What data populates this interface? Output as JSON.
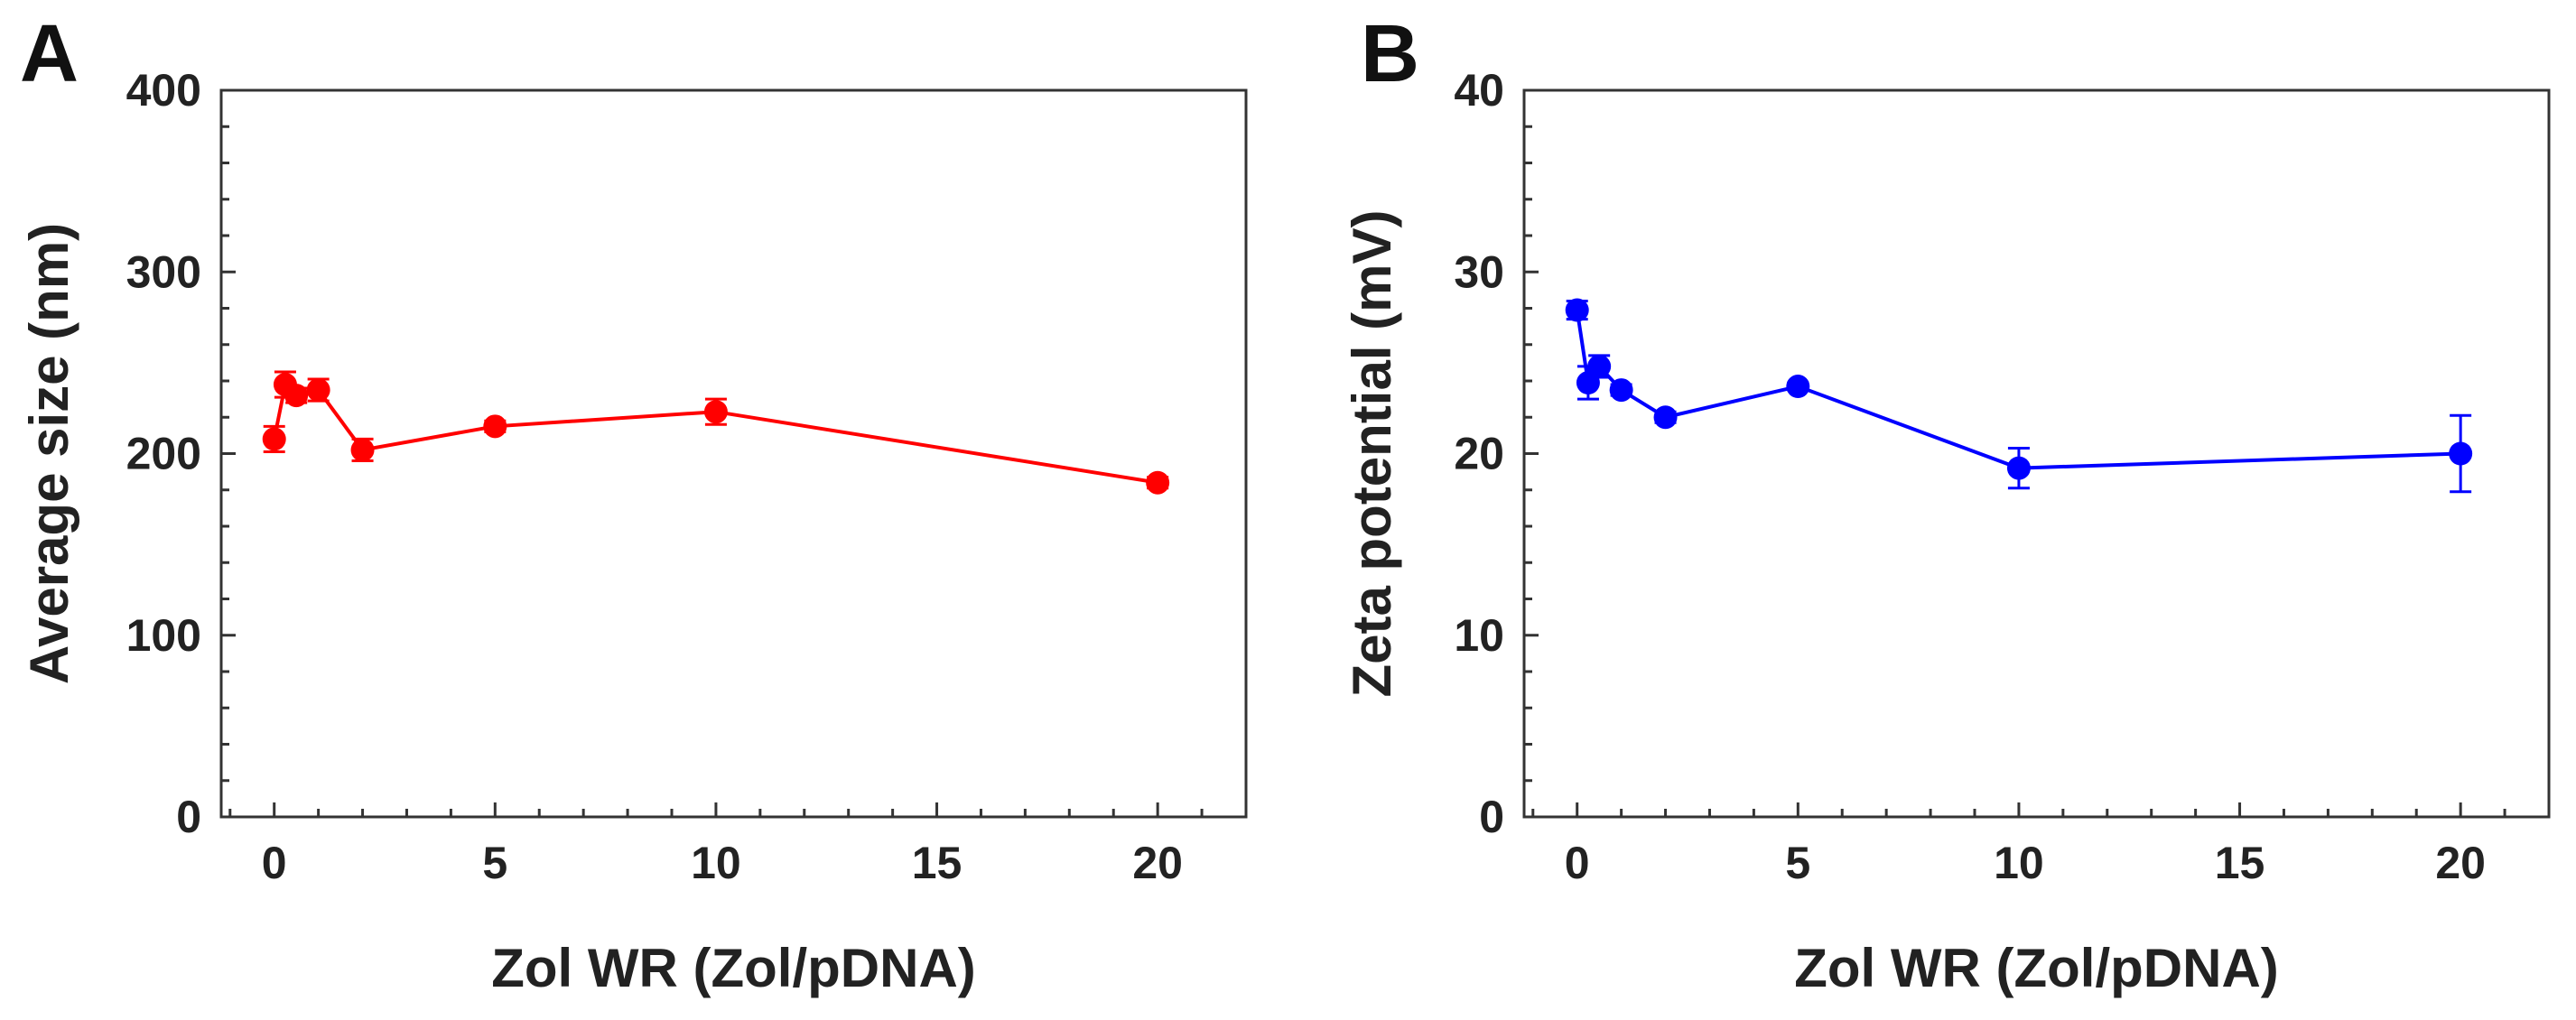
{
  "chart_data": [
    {
      "panel_label": "A",
      "type": "line",
      "xlabel": "Zol WR (Zol/pDNA)",
      "ylabel": "Average size (nm)",
      "xlim": [
        -1.2,
        22
      ],
      "ylim": [
        0,
        400
      ],
      "xticks": [
        "0",
        "5",
        "10",
        "15",
        "20"
      ],
      "xtick_values": [
        0,
        5,
        10,
        15,
        20
      ],
      "yticks": [
        "0",
        "100",
        "200",
        "300",
        "400"
      ],
      "ytick_values": [
        0,
        100,
        200,
        300,
        400
      ],
      "grid": false,
      "series": [
        {
          "color": "#ff0000",
          "x": [
            0,
            0.25,
            0.5,
            1,
            2,
            5,
            10,
            20
          ],
          "y": [
            208,
            238,
            232,
            235,
            202,
            215,
            223,
            184
          ],
          "error": [
            7,
            7,
            4,
            6,
            6,
            3,
            7,
            3
          ]
        }
      ]
    },
    {
      "panel_label": "B",
      "type": "line",
      "xlabel": "Zol WR (Zol/pDNA)",
      "ylabel": "Zeta potential (mV)",
      "xlim": [
        -1.2,
        22
      ],
      "ylim": [
        0,
        40
      ],
      "xticks": [
        "0",
        "5",
        "10",
        "15",
        "20"
      ],
      "xtick_values": [
        0,
        5,
        10,
        15,
        20
      ],
      "yticks": [
        "0",
        "10",
        "20",
        "30",
        "40"
      ],
      "ytick_values": [
        0,
        10,
        20,
        30,
        40
      ],
      "grid": false,
      "series": [
        {
          "color": "#0000ff",
          "x": [
            0,
            0.25,
            0.5,
            1,
            2,
            5,
            10,
            20
          ],
          "y": [
            27.9,
            23.9,
            24.8,
            23.5,
            22.0,
            23.7,
            19.2,
            20.0
          ],
          "error": [
            0.5,
            0.9,
            0.6,
            0.3,
            0.3,
            0.2,
            1.1,
            2.1
          ]
        }
      ]
    }
  ]
}
